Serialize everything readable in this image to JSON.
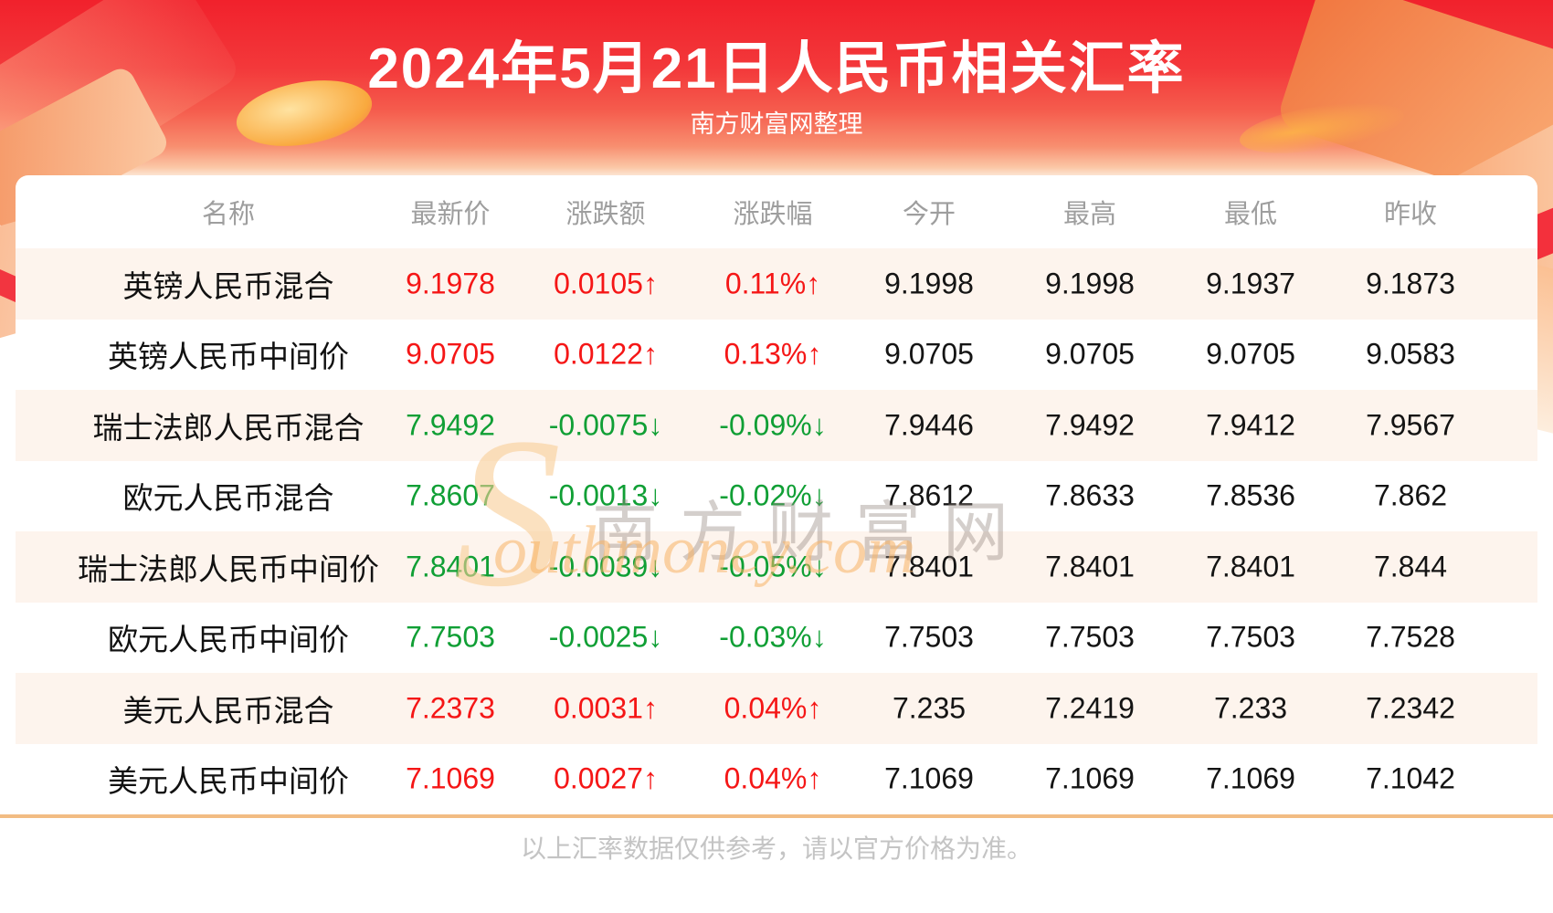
{
  "header": {
    "title": "2024年5月21日人民币相关汇率",
    "subtitle": "南方财富网整理"
  },
  "chart_data": {
    "type": "table",
    "title": "2024年5月21日人民币相关汇率",
    "columns": [
      "名称",
      "最新价",
      "涨跌额",
      "涨跌幅",
      "今开",
      "最高",
      "最低",
      "昨收"
    ],
    "rows": [
      {
        "name": "英镑人民币混合",
        "latest": "9.1978",
        "change": "0.0105",
        "change_pct": "0.11%",
        "direction": "up",
        "open": "9.1998",
        "high": "9.1998",
        "low": "9.1937",
        "prev_close": "9.1873"
      },
      {
        "name": "英镑人民币中间价",
        "latest": "9.0705",
        "change": "0.0122",
        "change_pct": "0.13%",
        "direction": "up",
        "open": "9.0705",
        "high": "9.0705",
        "low": "9.0705",
        "prev_close": "9.0583"
      },
      {
        "name": "瑞士法郎人民币混合",
        "latest": "7.9492",
        "change": "-0.0075",
        "change_pct": "-0.09%",
        "direction": "down",
        "open": "7.9446",
        "high": "7.9492",
        "low": "7.9412",
        "prev_close": "7.9567"
      },
      {
        "name": "欧元人民币混合",
        "latest": "7.8607",
        "change": "-0.0013",
        "change_pct": "-0.02%",
        "direction": "down",
        "open": "7.8612",
        "high": "7.8633",
        "low": "7.8536",
        "prev_close": "7.862"
      },
      {
        "name": "瑞士法郎人民币中间价",
        "latest": "7.8401",
        "change": "-0.0039",
        "change_pct": "-0.05%",
        "direction": "down",
        "open": "7.8401",
        "high": "7.8401",
        "low": "7.8401",
        "prev_close": "7.844"
      },
      {
        "name": "欧元人民币中间价",
        "latest": "7.7503",
        "change": "-0.0025",
        "change_pct": "-0.03%",
        "direction": "down",
        "open": "7.7503",
        "high": "7.7503",
        "low": "7.7503",
        "prev_close": "7.7528"
      },
      {
        "name": "美元人民币混合",
        "latest": "7.2373",
        "change": "0.0031",
        "change_pct": "0.04%",
        "direction": "up",
        "open": "7.235",
        "high": "7.2419",
        "low": "7.233",
        "prev_close": "7.2342"
      },
      {
        "name": "美元人民币中间价",
        "latest": "7.1069",
        "change": "0.0027",
        "change_pct": "0.04%",
        "direction": "up",
        "open": "7.1069",
        "high": "7.1069",
        "low": "7.1069",
        "prev_close": "7.1042"
      }
    ]
  },
  "watermark": {
    "s": "S",
    "cn": "南方财富网",
    "en": "outhmoney.com"
  },
  "footer": {
    "note": "以上汇率数据仅供参考，请以官方价格为准。"
  },
  "colors": {
    "up": "#f51616",
    "down": "#109f35",
    "stripe": "#fdf4ed",
    "divider": "#f2bc83",
    "banner_red": "#f1212c"
  }
}
